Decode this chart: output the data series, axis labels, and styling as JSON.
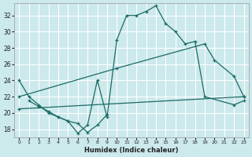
{
  "bg_color": "#cce9ec",
  "grid_color": "#ffffff",
  "line_color": "#1a6b65",
  "xlabel": "Humidex (Indice chaleur)",
  "xlim": [
    -0.5,
    23.5
  ],
  "ylim": [
    17,
    33.5
  ],
  "yticks": [
    18,
    20,
    22,
    24,
    26,
    28,
    30,
    32
  ],
  "xticks": [
    0,
    1,
    2,
    3,
    4,
    5,
    6,
    7,
    8,
    9,
    10,
    11,
    12,
    13,
    14,
    15,
    16,
    17,
    18,
    19,
    20,
    21,
    22,
    23
  ],
  "line1_x": [
    0,
    1,
    2,
    3,
    4,
    5,
    6,
    7,
    8,
    9,
    10,
    11,
    12,
    13,
    14,
    15,
    16,
    17,
    18,
    19,
    22,
    23
  ],
  "line1_y": [
    24,
    22,
    21,
    20,
    19.5,
    19,
    17.5,
    18.5,
    24,
    19.5,
    29,
    32,
    32,
    32.5,
    33.2,
    31,
    30,
    28.5,
    28.8,
    22,
    21,
    21.5
  ],
  "line2_x": [
    0,
    10,
    19,
    20,
    22,
    23
  ],
  "line2_y": [
    22,
    25.5,
    28.5,
    26.5,
    24.5,
    22
  ],
  "line3_x": [
    0,
    23
  ],
  "line3_y": [
    20.5,
    22
  ],
  "line4_x": [
    1,
    2,
    3,
    4,
    5,
    6,
    7,
    8,
    9
  ],
  "line4_y": [
    21.5,
    20.8,
    20.2,
    19.5,
    19.0,
    18.7,
    17.6,
    18.5,
    19.8
  ]
}
